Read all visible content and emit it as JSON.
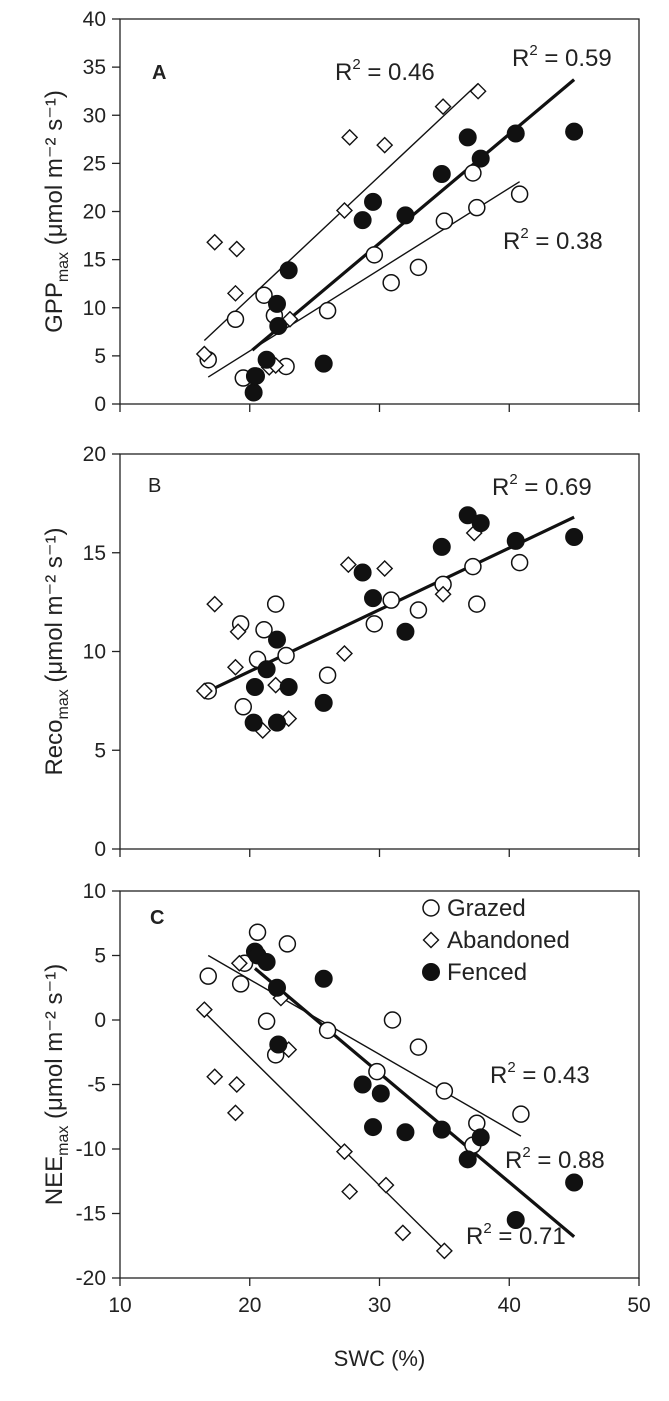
{
  "chart_data": [
    {
      "type": "scatter",
      "panel": "A",
      "ylabel": "GPP",
      "ylabel_sub": "max",
      "ylabel_unit": "(μmol m⁻² s⁻¹)",
      "ylim": [
        0,
        40
      ],
      "yticks": [
        0,
        5,
        10,
        15,
        20,
        25,
        30,
        35,
        40
      ],
      "xlim": [
        10,
        50
      ],
      "series": [
        {
          "name": "Grazed",
          "marker": "open-circle",
          "x": [
            16.8,
            18.9,
            19.5,
            20.5,
            21.1,
            21.9,
            22.8,
            26.0,
            29.6,
            30.9,
            33.0,
            35.0,
            37.2,
            37.5,
            40.8
          ],
          "y": [
            4.6,
            8.8,
            2.7,
            2.9,
            11.3,
            9.2,
            3.9,
            9.7,
            15.5,
            12.6,
            14.2,
            19.0,
            24.0,
            20.4,
            21.8
          ]
        },
        {
          "name": "Abandoned",
          "marker": "open-diamond",
          "x": [
            16.5,
            17.3,
            18.9,
            19.0,
            21.5,
            22.0,
            23.1,
            27.3,
            27.7,
            30.4,
            34.9,
            37.6
          ],
          "y": [
            5.2,
            16.8,
            11.5,
            16.1,
            3.8,
            4.0,
            8.8,
            20.1,
            27.7,
            26.9,
            30.9,
            32.5
          ]
        },
        {
          "name": "Fenced",
          "marker": "filled-circle",
          "x": [
            20.3,
            20.4,
            21.3,
            22.1,
            22.2,
            23.0,
            25.7,
            28.7,
            29.5,
            32.0,
            34.8,
            36.8,
            37.8,
            40.5,
            45.0
          ],
          "y": [
            1.2,
            2.9,
            4.6,
            10.4,
            8.1,
            13.9,
            4.2,
            19.1,
            21.0,
            19.6,
            23.9,
            27.7,
            25.5,
            28.1,
            28.3
          ]
        }
      ],
      "fit_lines": [
        {
          "series": "Abandoned",
          "x": [
            16.5,
            37.6
          ],
          "y": [
            6.6,
            33.3
          ],
          "r2": "R² = 0.46",
          "bold": false
        },
        {
          "series": "Fenced",
          "x": [
            20.2,
            45.0
          ],
          "y": [
            5.6,
            33.7
          ],
          "r2": "R² = 0.59",
          "bold": true
        },
        {
          "series": "Grazed",
          "x": [
            16.8,
            40.8
          ],
          "y": [
            2.8,
            23.1
          ],
          "r2": "R² = 0.38",
          "bold": false
        }
      ]
    },
    {
      "type": "scatter",
      "panel": "B",
      "ylabel": "Reco",
      "ylabel_sub": "max",
      "ylabel_unit": "(μmol m⁻² s⁻¹)",
      "ylim": [
        0,
        20
      ],
      "yticks": [
        0,
        5,
        10,
        15,
        20
      ],
      "xlim": [
        10,
        50
      ],
      "series": [
        {
          "name": "Grazed",
          "marker": "open-circle",
          "x": [
            16.8,
            19.3,
            19.5,
            20.6,
            21.1,
            22.0,
            22.8,
            26.0,
            29.6,
            30.9,
            33.0,
            34.9,
            37.2,
            37.5,
            40.8
          ],
          "y": [
            8.0,
            11.4,
            7.2,
            9.6,
            11.1,
            12.4,
            9.8,
            8.8,
            11.4,
            12.6,
            12.1,
            13.4,
            14.3,
            12.4,
            14.5
          ]
        },
        {
          "name": "Abandoned",
          "marker": "open-diamond",
          "x": [
            16.5,
            17.3,
            18.9,
            19.1,
            21.0,
            22.0,
            23.0,
            27.3,
            27.6,
            30.4,
            34.9,
            37.3
          ],
          "y": [
            8.0,
            12.4,
            9.2,
            11.0,
            6.0,
            8.3,
            6.6,
            9.9,
            14.4,
            14.2,
            12.9,
            16.0
          ]
        },
        {
          "name": "Fenced",
          "marker": "filled-circle",
          "x": [
            20.3,
            20.4,
            21.3,
            22.1,
            22.1,
            23.0,
            25.7,
            28.7,
            29.5,
            32.0,
            34.8,
            36.8,
            37.8,
            40.5,
            45.0
          ],
          "y": [
            6.4,
            8.2,
            9.1,
            10.6,
            6.4,
            8.2,
            7.4,
            14.0,
            12.7,
            11.0,
            15.3,
            16.9,
            16.5,
            15.6,
            15.8
          ]
        }
      ],
      "fit_lines": [
        {
          "series": "All",
          "x": [
            16.5,
            45.0
          ],
          "y": [
            7.9,
            16.8
          ],
          "r2": "R² = 0.69",
          "bold": true
        }
      ]
    },
    {
      "type": "scatter",
      "panel": "C",
      "ylabel": "NEE",
      "ylabel_sub": "max",
      "ylabel_unit": "(μmol m⁻² s⁻¹)",
      "ylim": [
        -20,
        10
      ],
      "yticks": [
        -20,
        -15,
        -10,
        -5,
        0,
        5,
        10
      ],
      "xlim": [
        10,
        50
      ],
      "xticks": [
        10,
        20,
        30,
        40,
        50
      ],
      "xlabel": "SWC (%)",
      "legend": {
        "placement": "top-right",
        "entries": [
          "Grazed",
          "Abandoned",
          "Fenced"
        ]
      },
      "series": [
        {
          "name": "Grazed",
          "marker": "open-circle",
          "x": [
            16.8,
            19.3,
            19.6,
            20.6,
            21.3,
            22.0,
            22.9,
            26.0,
            29.8,
            31.0,
            33.0,
            35.0,
            37.2,
            37.5,
            40.9
          ],
          "y": [
            3.4,
            2.8,
            4.4,
            6.8,
            -0.1,
            -2.7,
            5.9,
            -0.8,
            -4.0,
            0.0,
            -2.1,
            -5.5,
            -9.7,
            -8.0,
            -7.3
          ]
        },
        {
          "name": "Abandoned",
          "marker": "open-diamond",
          "x": [
            16.5,
            17.3,
            18.9,
            19.0,
            19.2,
            22.4,
            23.0,
            27.3,
            27.7,
            30.5,
            31.8,
            35.0
          ],
          "y": [
            0.8,
            -4.4,
            -7.2,
            -5.0,
            4.4,
            1.7,
            -2.3,
            -10.2,
            -13.3,
            -12.8,
            -16.5,
            -17.9
          ]
        },
        {
          "name": "Fenced",
          "marker": "filled-circle",
          "x": [
            20.4,
            20.6,
            21.3,
            22.1,
            22.2,
            25.7,
            28.7,
            29.5,
            30.1,
            32.0,
            34.8,
            36.8,
            37.8,
            40.5,
            45.0
          ],
          "y": [
            5.3,
            5.0,
            4.5,
            2.5,
            -1.9,
            3.2,
            -5.0,
            -8.3,
            -5.7,
            -8.7,
            -8.5,
            -10.8,
            -9.1,
            -15.5,
            -12.6
          ]
        }
      ],
      "fit_lines": [
        {
          "series": "Grazed",
          "x": [
            16.8,
            40.9
          ],
          "y": [
            5.0,
            -9.0
          ],
          "r2": "R² = 0.43",
          "bold": false
        },
        {
          "series": "Fenced",
          "x": [
            20.4,
            45.0
          ],
          "y": [
            4.0,
            -16.8
          ],
          "r2": "R² = 0.88",
          "bold": true
        },
        {
          "series": "Abandoned",
          "x": [
            16.5,
            35.0
          ],
          "y": [
            0.6,
            -17.8
          ],
          "r2": "R² = 0.71",
          "bold": false
        }
      ]
    }
  ]
}
